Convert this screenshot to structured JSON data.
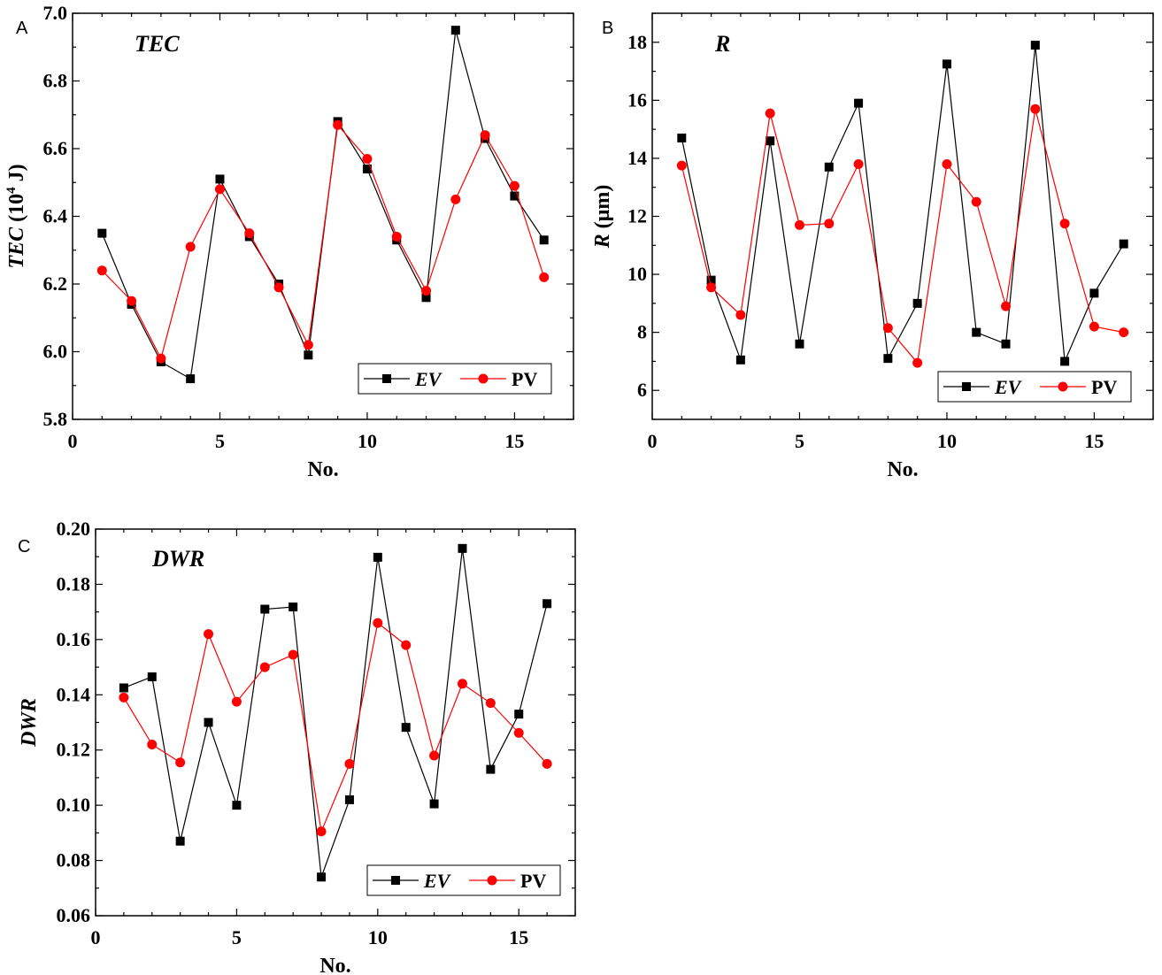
{
  "colors": {
    "ev": "#000000",
    "pv": "#ff0000"
  },
  "chart_data": [
    {
      "panel_letter": "A",
      "type": "line",
      "title": "TEC",
      "xlabel": "No.",
      "ylabel_main": "TEC",
      "ylabel_rest": " (10",
      "ylabel_sup": "4",
      "ylabel_end": " J)",
      "xlim": [
        0,
        17
      ],
      "ylim": [
        5.8,
        7.0
      ],
      "xticks": [
        0,
        5,
        10,
        15
      ],
      "yticks": [
        5.8,
        6.0,
        6.2,
        6.4,
        6.6,
        6.8,
        7.0
      ],
      "ytick_labels": [
        "5.8",
        "6.0",
        "6.2",
        "6.4",
        "6.6",
        "6.8",
        "7.0"
      ],
      "x": [
        1,
        2,
        3,
        4,
        5,
        6,
        7,
        8,
        9,
        10,
        11,
        12,
        13,
        14,
        15,
        16
      ],
      "series": [
        {
          "name": "EV",
          "values": [
            6.35,
            6.14,
            5.97,
            5.92,
            6.51,
            6.34,
            6.2,
            5.99,
            6.68,
            6.54,
            6.33,
            6.16,
            6.95,
            6.63,
            6.46,
            6.33
          ]
        },
        {
          "name": "PV",
          "values": [
            6.24,
            6.15,
            5.98,
            6.31,
            6.48,
            6.35,
            6.19,
            6.02,
            6.67,
            6.57,
            6.34,
            6.18,
            6.45,
            6.64,
            6.49,
            6.22
          ]
        }
      ],
      "legend": "bottom-right",
      "grid": false
    },
    {
      "panel_letter": "B",
      "type": "line",
      "title": "R",
      "xlabel": "No.",
      "ylabel_main": "R",
      "ylabel_rest": " (µm)",
      "ylabel_sup": "",
      "ylabel_end": "",
      "xlim": [
        0,
        17
      ],
      "ylim": [
        5,
        19
      ],
      "xticks": [
        0,
        5,
        10,
        15
      ],
      "yticks": [
        6,
        8,
        10,
        12,
        14,
        16,
        18
      ],
      "ytick_labels": [
        "6",
        "8",
        "10",
        "12",
        "14",
        "16",
        "18"
      ],
      "x": [
        1,
        2,
        3,
        4,
        5,
        6,
        7,
        8,
        9,
        10,
        11,
        12,
        13,
        14,
        15,
        16
      ],
      "series": [
        {
          "name": "EV",
          "values": [
            14.7,
            9.8,
            7.05,
            14.6,
            7.6,
            13.7,
            15.9,
            7.1,
            9.0,
            17.25,
            8.0,
            7.6,
            17.9,
            7.0,
            9.35,
            11.05
          ]
        },
        {
          "name": "PV",
          "values": [
            13.75,
            9.55,
            8.6,
            15.55,
            11.7,
            11.75,
            13.8,
            8.15,
            6.95,
            13.8,
            12.5,
            8.9,
            15.7,
            11.75,
            8.2,
            8.0
          ]
        }
      ],
      "legend": "bottom-right",
      "grid": false
    },
    {
      "panel_letter": "C",
      "type": "line",
      "title": "DWR",
      "xlabel": "No.",
      "ylabel_main": "DWR",
      "ylabel_rest": "",
      "ylabel_sup": "",
      "ylabel_end": "",
      "xlim": [
        0,
        17
      ],
      "ylim": [
        0.06,
        0.2
      ],
      "xticks": [
        0,
        5,
        10,
        15
      ],
      "yticks": [
        0.06,
        0.08,
        0.1,
        0.12,
        0.14,
        0.16,
        0.18,
        0.2
      ],
      "ytick_labels": [
        "0.06",
        "0.08",
        "0.10",
        "0.12",
        "0.14",
        "0.16",
        "0.18",
        "0.20"
      ],
      "x": [
        1,
        2,
        3,
        4,
        5,
        6,
        7,
        8,
        9,
        10,
        11,
        12,
        13,
        14,
        15,
        16
      ],
      "series": [
        {
          "name": "EV",
          "values": [
            0.1425,
            0.1465,
            0.087,
            0.13,
            0.1,
            0.171,
            0.1718,
            0.074,
            0.102,
            0.1898,
            0.1282,
            0.1005,
            0.193,
            0.113,
            0.133,
            0.173
          ]
        },
        {
          "name": "PV",
          "values": [
            0.139,
            0.122,
            0.1155,
            0.162,
            0.1375,
            0.15,
            0.1545,
            0.0905,
            0.115,
            0.166,
            0.158,
            0.118,
            0.144,
            0.137,
            0.1262,
            0.115
          ]
        }
      ],
      "legend": "bottom-right",
      "grid": false
    }
  ]
}
